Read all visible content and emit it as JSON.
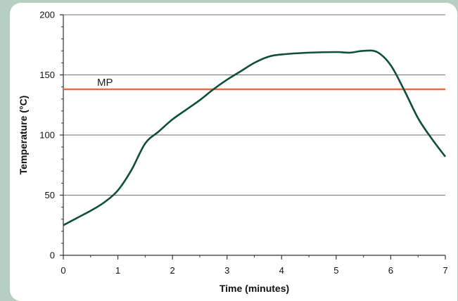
{
  "chart_data": {
    "type": "line",
    "xlabel": "Time (minutes)",
    "ylabel": "Temperature (°C)",
    "xlim": [
      0,
      7
    ],
    "ylim": [
      0,
      200
    ],
    "x_ticks": [
      0,
      1,
      2,
      3,
      4,
      5,
      6,
      7
    ],
    "y_ticks": [
      0,
      50,
      100,
      150,
      200
    ],
    "grid": "horizontal",
    "legend": "none",
    "series": [
      {
        "color": "#0f4f36",
        "x": [
          0,
          0.25,
          0.5,
          0.75,
          1.0,
          1.25,
          1.5,
          1.75,
          2.0,
          2.25,
          2.5,
          2.75,
          3.0,
          3.25,
          3.5,
          3.75,
          4.0,
          4.5,
          5.0,
          5.25,
          5.5,
          5.75,
          6.0,
          6.25,
          6.5,
          6.75,
          7.0
        ],
        "y": [
          25,
          31,
          37,
          44,
          54,
          71,
          93,
          103,
          113,
          121,
          129,
          138,
          146,
          153,
          160,
          165,
          167,
          168.5,
          169,
          168.5,
          170,
          169,
          158,
          137,
          114,
          97,
          82
        ]
      }
    ],
    "reference_lines": [
      {
        "label": "MP",
        "y": 138,
        "color": "#ef6a3e"
      }
    ]
  }
}
